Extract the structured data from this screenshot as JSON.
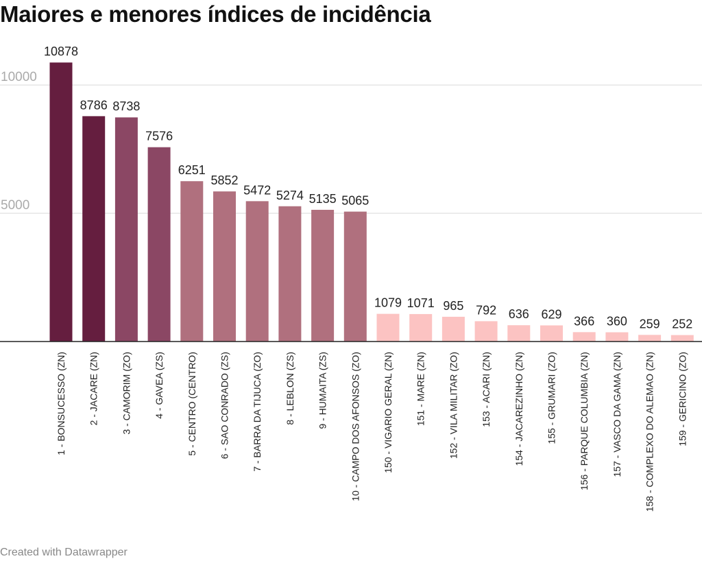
{
  "page": {
    "title": "Maiores e menores índices de incidência",
    "credit": "Created with Datawrapper"
  },
  "chart_data": {
    "type": "bar",
    "title": "Maiores e menores índices de incidência",
    "xlabel": "",
    "ylabel": "",
    "ylim": [
      0,
      11000
    ],
    "yticks": [
      5000,
      10000
    ],
    "grid": true,
    "categories": [
      "1 - BONSUCESSO (ZN)",
      "2 - JACARE (ZN)",
      "3 - CAMORIM (ZO)",
      "4 - GAVEA (ZS)",
      "5 - CENTRO (CENTRO)",
      "6 - SAO CONRADO (ZS)",
      "7 - BARRA DA TIJUCA (ZO)",
      "8 - LEBLON (ZS)",
      "9 - HUMAITA (ZS)",
      "10 - CAMPO DOS AFONSOS (ZO)",
      "150 - VIGARIO GERAL (ZN)",
      "151 - MARE (ZN)",
      "152 - VILA MILITAR (ZO)",
      "153 - ACARI (ZN)",
      "154 - JACAREZINHO (ZN)",
      "155 - GRUMARI (ZO)",
      "156 - PARQUE COLUMBIA (ZN)",
      "157 - VASCO DA GAMA (ZN)",
      "158 - COMPLEXO DO ALEMAO (ZN)",
      "159 - GERICINO (ZO)"
    ],
    "values": [
      10878,
      8786,
      8738,
      7576,
      6251,
      5852,
      5472,
      5274,
      5135,
      5065,
      1079,
      1071,
      965,
      792,
      636,
      629,
      366,
      360,
      259,
      252
    ],
    "colors": [
      "#651e3f",
      "#651e3f",
      "#8b4764",
      "#8b4764",
      "#b0707e",
      "#b0707e",
      "#b0707e",
      "#b0707e",
      "#b0707e",
      "#b0707e",
      "#fcc3c2",
      "#fcc3c2",
      "#fcc3c2",
      "#fcc3c2",
      "#fcc3c2",
      "#fcc3c2",
      "#fcc3c2",
      "#fcc3c2",
      "#fcc3c2",
      "#fcc3c2"
    ]
  }
}
